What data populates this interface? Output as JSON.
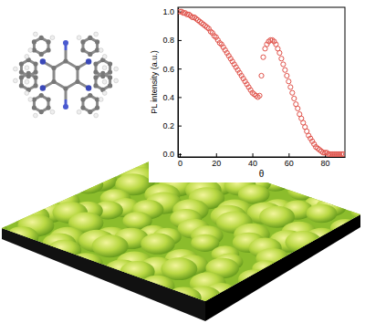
{
  "chart_data": {
    "type": "scatter",
    "xlabel": "θ",
    "ylabel": "PL intensity (a.u.)",
    "x": [
      0,
      1,
      2,
      3,
      4,
      5,
      6,
      7,
      8,
      9,
      10,
      11,
      12,
      13,
      14,
      15,
      16,
      17,
      18,
      19,
      20,
      21,
      22,
      23,
      24,
      25,
      26,
      27,
      28,
      29,
      30,
      31,
      32,
      33,
      34,
      35,
      36,
      37,
      38,
      39,
      40,
      41,
      42,
      43,
      44,
      45,
      46,
      47,
      48,
      49,
      50,
      51,
      52,
      53,
      54,
      55,
      56,
      57,
      58,
      59,
      60,
      61,
      62,
      63,
      64,
      65,
      66,
      67,
      68,
      69,
      70,
      71,
      72,
      73,
      74,
      75,
      76,
      77,
      78,
      79,
      80,
      81,
      82,
      83,
      84,
      85,
      86,
      87,
      88,
      89,
      90
    ],
    "values": [
      1.0,
      1.0,
      0.99,
      0.99,
      0.98,
      0.98,
      0.97,
      0.96,
      0.96,
      0.95,
      0.94,
      0.93,
      0.92,
      0.91,
      0.9,
      0.89,
      0.88,
      0.86,
      0.85,
      0.83,
      0.82,
      0.8,
      0.78,
      0.77,
      0.75,
      0.73,
      0.71,
      0.69,
      0.67,
      0.65,
      0.63,
      0.61,
      0.59,
      0.57,
      0.55,
      0.53,
      0.51,
      0.49,
      0.47,
      0.45,
      0.43,
      0.42,
      0.41,
      0.4,
      0.41,
      0.55,
      0.68,
      0.74,
      0.77,
      0.79,
      0.8,
      0.8,
      0.79,
      0.77,
      0.74,
      0.71,
      0.67,
      0.63,
      0.59,
      0.55,
      0.51,
      0.47,
      0.43,
      0.39,
      0.35,
      0.32,
      0.28,
      0.25,
      0.22,
      0.19,
      0.16,
      0.13,
      0.11,
      0.09,
      0.07,
      0.05,
      0.04,
      0.03,
      0.02,
      0.01,
      0.01,
      0.01,
      0.0,
      0.0,
      0.0,
      0.0,
      0.0,
      0.0,
      0.0,
      0.0,
      0.0
    ],
    "xlim": [
      -1,
      91
    ],
    "ylim": [
      -0.02,
      1.03
    ],
    "xticks": [
      0,
      20,
      40,
      60,
      80
    ],
    "yticks": [
      {
        "value": 0,
        "label": "0.0"
      },
      {
        "value": 0.2,
        "label": "0.2"
      },
      {
        "value": 0.4,
        "label": "0.4"
      },
      {
        "value": 0.6,
        "label": "0.6"
      },
      {
        "value": 0.8,
        "label": "0.8"
      },
      {
        "value": 1,
        "label": "1.0"
      }
    ],
    "color": "#e0524a",
    "marker": "circle"
  }
}
